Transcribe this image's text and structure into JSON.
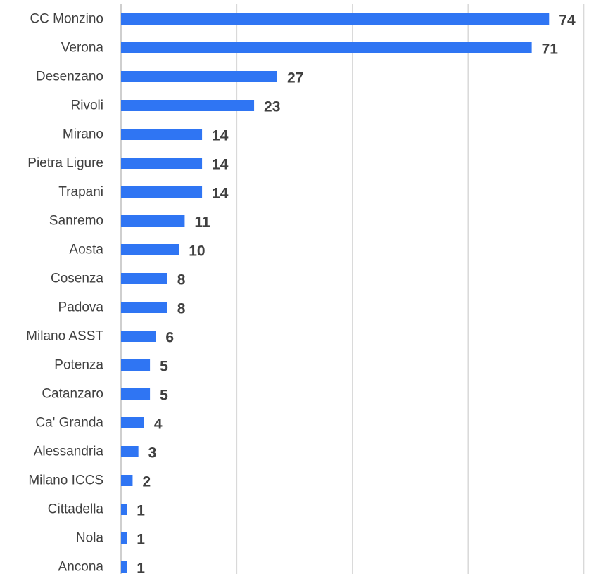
{
  "chart_data": {
    "type": "bar",
    "orientation": "horizontal",
    "categories": [
      "CC Monzino",
      "Verona",
      "Desenzano",
      "Rivoli",
      "Mirano",
      "Pietra Ligure",
      "Trapani",
      "Sanremo",
      "Aosta",
      "Cosenza",
      "Padova",
      "Milano ASST",
      "Potenza",
      "Catanzaro",
      "Ca' Granda",
      "Alessandria",
      "Milano ICCS",
      "Cittadella",
      "Nola",
      "Ancona"
    ],
    "values": [
      74,
      71,
      27,
      23,
      14,
      14,
      14,
      11,
      10,
      8,
      8,
      6,
      5,
      5,
      4,
      3,
      2,
      1,
      1,
      1
    ],
    "xlim": [
      0,
      80
    ],
    "grid": true,
    "data_labels": true,
    "bar_color": "#2f75f3",
    "title": "",
    "xlabel": "",
    "ylabel": ""
  }
}
